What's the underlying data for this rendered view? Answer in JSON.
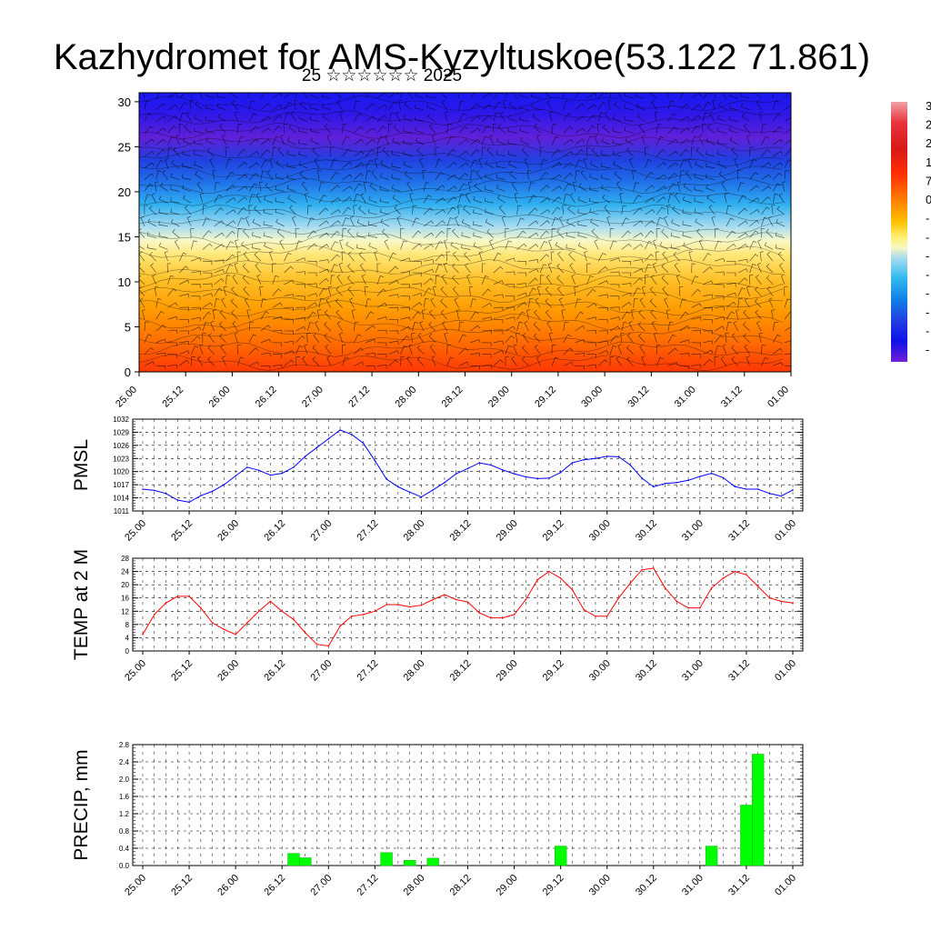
{
  "title": "Kazhydromet for AMS-Kyzyltuskoe(53.122 71.861)",
  "subtitle": "25 ☆☆☆☆☆☆ 2025",
  "colorbar": {
    "visible_labels": [
      "3",
      "2",
      "2",
      "1",
      "7",
      "0",
      "-",
      "-",
      "-",
      "-",
      "-",
      "-",
      "-",
      "-"
    ],
    "colors": [
      "#f0a0a8",
      "#e8343c",
      "#d81818",
      "#ff2a00",
      "#ff7000",
      "#ffb000",
      "#ffec60",
      "#f8f8b0",
      "#b0e0f0",
      "#30b8f0",
      "#1080e8",
      "#2040e0",
      "#1010e8",
      "#7020d8"
    ]
  },
  "chart_data": [
    {
      "type": "heatmap",
      "name": "cross-section",
      "x_ticks": [
        "25.00",
        "25.12",
        "26.00",
        "26.12",
        "27.00",
        "27.12",
        "28.00",
        "28.12",
        "29.00",
        "29.12",
        "30.00",
        "30.12",
        "31.00",
        "31.12",
        "01.00"
      ],
      "y_ticks": [
        0,
        5,
        10,
        15,
        20,
        25,
        30
      ],
      "ylim": [
        0,
        31
      ],
      "color_scale": "temperature (red warm at low levels, blue/violet cold aloft)",
      "overlays": [
        "wind barbs",
        "contour lines"
      ],
      "grid": false
    },
    {
      "type": "line",
      "ylabel": "PMSL",
      "color": "#0000ff",
      "ylim": [
        1011,
        1032
      ],
      "y_ticks": [
        1011,
        1014,
        1017,
        1020,
        1023,
        1026,
        1029,
        1032
      ],
      "x_ticks": [
        "25.00",
        "25.12",
        "26.00",
        "26.12",
        "27.00",
        "27.12",
        "28.00",
        "28.12",
        "29.00",
        "29.12",
        "30.00",
        "30.12",
        "31.00",
        "31.12",
        "01.00"
      ],
      "x": [
        0,
        3,
        6,
        9,
        12,
        15,
        18,
        21,
        24,
        27,
        30,
        33,
        36,
        39,
        42,
        45,
        48,
        51,
        54,
        57,
        60,
        63,
        66,
        69,
        72,
        75,
        78,
        81,
        84,
        87,
        90,
        93,
        96,
        99,
        102,
        105,
        108,
        111,
        114,
        117,
        120,
        123,
        126,
        129,
        132,
        135,
        138,
        141,
        144,
        147,
        150,
        153,
        156,
        159,
        162,
        165,
        168
      ],
      "y": [
        1016.0,
        1015.7,
        1015.0,
        1013.5,
        1013.0,
        1014.5,
        1015.5,
        1017.0,
        1019.0,
        1021.0,
        1020.3,
        1019.2,
        1019.6,
        1021.0,
        1023.5,
        1025.5,
        1027.5,
        1029.5,
        1028.5,
        1026.5,
        1022.5,
        1018.3,
        1016.5,
        1015.3,
        1014.2,
        1015.8,
        1017.5,
        1019.5,
        1020.7,
        1022.0,
        1021.5,
        1020.4,
        1019.5,
        1018.8,
        1018.4,
        1018.5,
        1019.8,
        1022.0,
        1022.7,
        1023.0,
        1023.5,
        1023.4,
        1021.5,
        1018.5,
        1016.5,
        1017.3,
        1017.5,
        1018.0,
        1018.9,
        1019.6,
        1018.6,
        1016.6,
        1016.0,
        1016.0,
        1015.0,
        1014.4,
        1015.8
      ],
      "grid": true
    },
    {
      "type": "line",
      "ylabel": "TEMP at 2 M",
      "color": "#ff0000",
      "ylim": [
        0,
        28
      ],
      "y_ticks": [
        0,
        4,
        8,
        12,
        16,
        20,
        24,
        28
      ],
      "x_ticks": [
        "25.00",
        "25.12",
        "26.00",
        "26.12",
        "27.00",
        "27.12",
        "28.00",
        "28.12",
        "29.00",
        "29.12",
        "30.00",
        "30.12",
        "31.00",
        "31.12",
        "01.00"
      ],
      "x": [
        0,
        3,
        6,
        9,
        12,
        15,
        18,
        21,
        24,
        27,
        30,
        33,
        36,
        39,
        42,
        45,
        48,
        51,
        54,
        57,
        60,
        63,
        66,
        69,
        72,
        75,
        78,
        81,
        84,
        87,
        90,
        93,
        96,
        99,
        102,
        105,
        108,
        111,
        114,
        117,
        120,
        123,
        126,
        129,
        132,
        135,
        138,
        141,
        144,
        147,
        150,
        153,
        156,
        159,
        162,
        165,
        168
      ],
      "y": [
        5.0,
        11.0,
        14.5,
        16.5,
        16.5,
        13.0,
        8.5,
        6.5,
        5.0,
        8.5,
        12.0,
        15.0,
        12.0,
        9.5,
        5.5,
        2.0,
        1.5,
        7.5,
        10.5,
        11.0,
        12.0,
        14.0,
        14.0,
        13.3,
        13.8,
        15.5,
        17.0,
        15.5,
        14.8,
        11.5,
        10.0,
        10.0,
        11.0,
        15.5,
        21.5,
        24.0,
        22.0,
        18.5,
        12.5,
        10.5,
        10.5,
        16.0,
        20.5,
        24.5,
        25.0,
        19.0,
        15.0,
        13.0,
        13.0,
        19.0,
        22.0,
        24.0,
        23.0,
        19.5,
        16.0,
        15.0,
        14.5
      ],
      "grid": true
    },
    {
      "type": "bar",
      "ylabel": "PRECIP, mm",
      "color": "#00ff00",
      "ylim": [
        0,
        2.8
      ],
      "y_ticks": [
        "0.0",
        "0.4",
        "0.8",
        "1.2",
        "1.6",
        "2.0",
        "2.4",
        "2.8"
      ],
      "x_ticks": [
        "25.00",
        "25.12",
        "26.00",
        "26.12",
        "27.00",
        "27.12",
        "28.00",
        "28.12",
        "29.00",
        "29.12",
        "30.00",
        "30.12",
        "31.00",
        "31.12",
        "01.00"
      ],
      "x": [
        39,
        42,
        63,
        69,
        75,
        108,
        147,
        156,
        159
      ],
      "values": [
        0.28,
        0.18,
        0.3,
        0.12,
        0.17,
        0.45,
        0.45,
        1.4,
        2.58
      ],
      "grid": true
    }
  ]
}
